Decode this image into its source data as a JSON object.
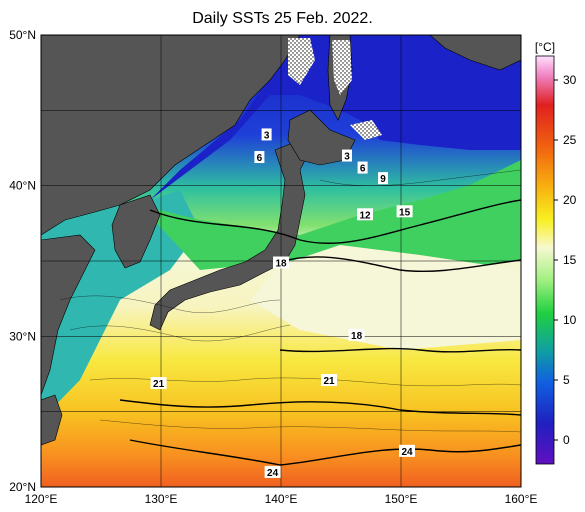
{
  "title": "Daily SSTs 25 Feb. 2022.",
  "map": {
    "lon_range": [
      120,
      160
    ],
    "lat_range": [
      20,
      50
    ],
    "lon_ticks": [
      "120°E",
      "130°E",
      "140°E",
      "150°E",
      "160°E"
    ],
    "lat_ticks": [
      "50°N",
      "40°N",
      "30°N",
      "20°N"
    ],
    "grid": true,
    "land_color": "#555555"
  },
  "colorbar": {
    "unit": "[°C]",
    "ticks": [
      "30",
      "25",
      "20",
      "15",
      "10",
      "5",
      "0"
    ],
    "range": [
      -2,
      32
    ]
  },
  "isotherm_labels": [
    {
      "text": "3",
      "lon": 138.8,
      "lat": 43.4
    },
    {
      "text": "6",
      "lon": 138.2,
      "lat": 41.9
    },
    {
      "text": "3",
      "lon": 145.5,
      "lat": 42.0
    },
    {
      "text": "6",
      "lon": 146.8,
      "lat": 41.2
    },
    {
      "text": "9",
      "lon": 148.5,
      "lat": 40.5
    },
    {
      "text": "12",
      "lon": 147.0,
      "lat": 38.1
    },
    {
      "text": "15",
      "lon": 150.3,
      "lat": 38.3
    },
    {
      "text": "18",
      "lon": 140.0,
      "lat": 34.9
    },
    {
      "text": "18",
      "lon": 146.3,
      "lat": 30.1
    },
    {
      "text": "21",
      "lon": 129.8,
      "lat": 26.9
    },
    {
      "text": "21",
      "lon": 144.0,
      "lat": 27.1
    },
    {
      "text": "24",
      "lon": 150.5,
      "lat": 22.4
    },
    {
      "text": "24",
      "lon": 139.3,
      "lat": 21.0
    }
  ]
}
